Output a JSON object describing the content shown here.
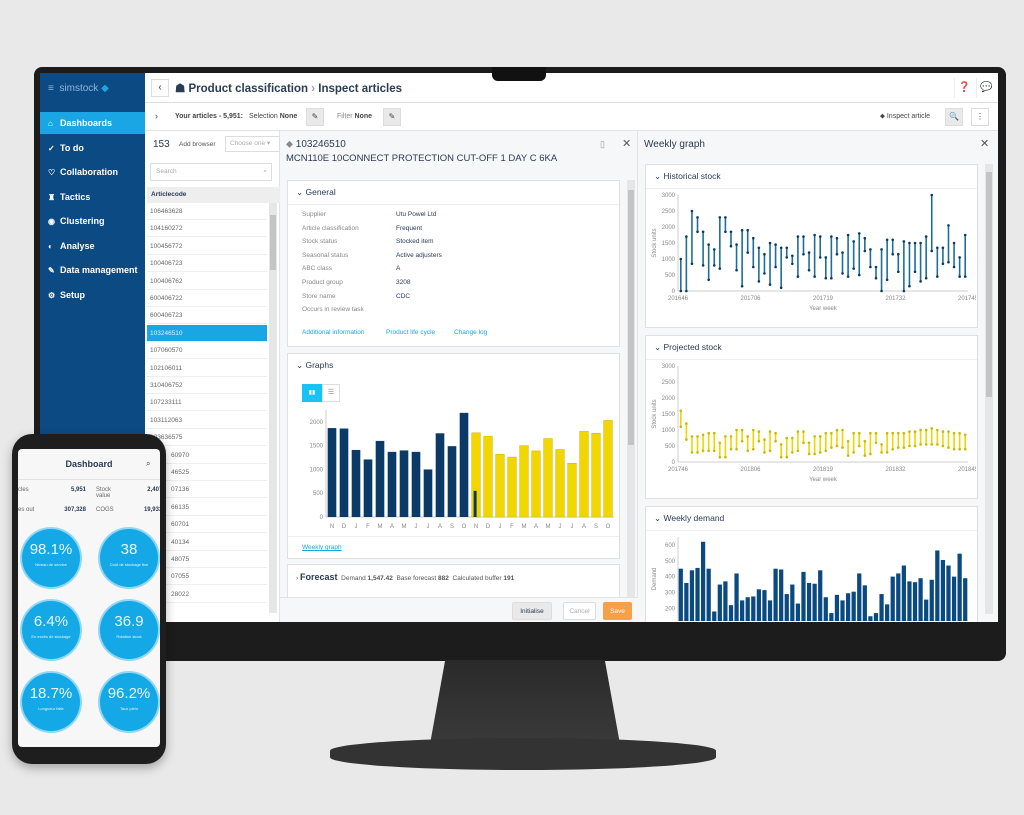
{
  "app": {
    "logo": "simstock"
  },
  "sidebar": {
    "items": [
      {
        "label": "Dashboards",
        "icon": "home-icon",
        "active": true
      },
      {
        "label": "To do",
        "icon": "check-icon"
      },
      {
        "label": "Collaboration",
        "icon": "handshake-icon"
      },
      {
        "label": "Tactics",
        "icon": "chess-icon"
      },
      {
        "label": "Clustering",
        "icon": "eye-icon"
      },
      {
        "label": "Analyse",
        "icon": "chart-icon"
      },
      {
        "label": "Data management",
        "icon": "wrench-icon"
      },
      {
        "label": "Setup",
        "icon": "gear-icon"
      }
    ]
  },
  "header": {
    "crumb1": "Product classification",
    "crumb2": "Inspect articles"
  },
  "toolbar": {
    "articles_label": "Your articles - 5,951:",
    "selection_label": "Selection",
    "selection_value": "None",
    "filter_label": "Filter",
    "filter_value": "None",
    "inspect_label": "Inspect article"
  },
  "list": {
    "count": "153",
    "add_browser": "Add browser",
    "choose": "Choose one",
    "search_placeholder": "Search",
    "column": "Articlecode",
    "rows": [
      "106463628",
      "104160272",
      "100456772",
      "100406723",
      "100406762",
      "600406722",
      "600406723",
      "103246510",
      "107060570",
      "102106011",
      "310406752",
      "107233111",
      "103112063",
      "103636575",
      "60970",
      "46525",
      "07136",
      "66135",
      "60701",
      "40134",
      "48075",
      "07055",
      "28022"
    ],
    "selected_index": 7
  },
  "detail": {
    "code": "103246510",
    "title": "MCN110E 10CONNECT PROTECTION CUT-OFF 1 DAY C 6KA",
    "general_title": "General",
    "fields": [
      {
        "k": "Supplier",
        "v": "Utu Powel Ltd"
      },
      {
        "k": "Article classification",
        "v": "Frequent"
      },
      {
        "k": "Stock status",
        "v": "Stocked item"
      },
      {
        "k": "Seasonal status",
        "v": "Active adjusters"
      },
      {
        "k": "ABC class",
        "v": "A"
      },
      {
        "k": "Product group",
        "v": "3208"
      },
      {
        "k": "Store name",
        "v": "CDC"
      },
      {
        "k": "Occurs in review task",
        "v": ""
      }
    ],
    "links": [
      "Additional information",
      "Product life cycle",
      "Change log"
    ],
    "graphs_title": "Graphs",
    "weekly_link": "Weekly graph",
    "forecast_title": "Forecast",
    "forecast_demand_label": "Demand",
    "forecast_demand": "1,547.42",
    "base_forecast_label": "Base forecast",
    "base_forecast": "882",
    "buffer_label": "Calculated buffer",
    "buffer": "191",
    "buttons": {
      "initialise": "Initialise",
      "cancel": "Cancel",
      "save": "Save"
    }
  },
  "weekly": {
    "title": "Weekly graph",
    "historical_title": "Historical stock",
    "projected_title": "Projected stock",
    "demand_title": "Weekly demand"
  },
  "colors": {
    "navy": "#0b3a66",
    "yellow": "#f2d600",
    "teal": "#1f6f95",
    "accent": "#1aa6e4",
    "save": "#f7a04a"
  },
  "chart_data": [
    {
      "type": "bar",
      "categories": [
        "N",
        "D",
        "J",
        "F",
        "M",
        "A",
        "M",
        "J",
        "J",
        "A",
        "S",
        "O",
        "N",
        "D",
        "J",
        "F",
        "M",
        "A",
        "M",
        "J",
        "J",
        "A",
        "S",
        "O"
      ],
      "series": [
        {
          "values": [
            1870,
            1860,
            1410,
            1210,
            1600,
            1370,
            1400,
            1370,
            1000,
            1760,
            1490,
            2190,
            550,
            null,
            null,
            null,
            null,
            null,
            null,
            null,
            null,
            null,
            null,
            null
          ],
          "color": "#0b3a66"
        },
        {
          "values": [
            null,
            null,
            null,
            null,
            null,
            null,
            null,
            null,
            null,
            null,
            null,
            null,
            1770,
            1700,
            1320,
            1260,
            1500,
            1390,
            1650,
            1420,
            1130,
            1800,
            1760,
            2030
          ],
          "color": "#f2d600"
        }
      ],
      "ylim": [
        0,
        2250
      ],
      "yticks": [
        0,
        500,
        1000,
        1500,
        2000
      ]
    },
    {
      "type": "range",
      "ylabel": "Stock units",
      "xlabel": "Year week",
      "xticks": [
        "201646",
        "201706",
        "201719",
        "201732",
        "201745"
      ],
      "ylim": [
        0,
        3000
      ],
      "yticks": [
        0,
        500,
        1000,
        1500,
        2000,
        2500,
        3000
      ],
      "color": "#1f6f95",
      "ranges": [
        [
          0,
          1000
        ],
        [
          0,
          1700
        ],
        [
          850,
          2500
        ],
        [
          1850,
          2300
        ],
        [
          800,
          1850
        ],
        [
          350,
          1450
        ],
        [
          800,
          1300
        ],
        [
          700,
          2300
        ],
        [
          1850,
          2300
        ],
        [
          1400,
          1850
        ],
        [
          650,
          1450
        ],
        [
          150,
          1900
        ],
        [
          1200,
          1900
        ],
        [
          750,
          1650
        ],
        [
          300,
          1350
        ],
        [
          550,
          1150
        ],
        [
          200,
          1500
        ],
        [
          750,
          1450
        ],
        [
          100,
          1350
        ],
        [
          1050,
          1350
        ],
        [
          850,
          1100
        ],
        [
          450,
          1700
        ],
        [
          1150,
          1700
        ],
        [
          650,
          1200
        ],
        [
          450,
          1750
        ],
        [
          1050,
          1700
        ],
        [
          400,
          1050
        ],
        [
          400,
          1700
        ],
        [
          1150,
          1650
        ],
        [
          550,
          1200
        ],
        [
          450,
          1750
        ],
        [
          700,
          1550
        ],
        [
          500,
          1800
        ],
        [
          1250,
          1650
        ],
        [
          750,
          1300
        ],
        [
          400,
          750
        ],
        [
          0,
          1300
        ],
        [
          350,
          1600
        ],
        [
          1150,
          1600
        ],
        [
          600,
          1150
        ],
        [
          0,
          1550
        ],
        [
          150,
          1500
        ],
        [
          600,
          1500
        ],
        [
          300,
          1500
        ],
        [
          400,
          1700
        ],
        [
          1250,
          3000
        ],
        [
          450,
          1350
        ],
        [
          850,
          1350
        ],
        [
          900,
          2050
        ],
        [
          750,
          1500
        ],
        [
          450,
          1050
        ],
        [
          450,
          1750
        ]
      ]
    },
    {
      "type": "range",
      "ylabel": "Stock units",
      "xlabel": "Year week",
      "xticks": [
        "201746",
        "201806",
        "201819",
        "201832",
        "201845"
      ],
      "ylim": [
        0,
        3000
      ],
      "yticks": [
        0,
        500,
        1000,
        1500,
        2000,
        2500,
        3000
      ],
      "color": "#e8d800",
      "ranges": [
        [
          1100,
          1600
        ],
        [
          700,
          1200
        ],
        [
          300,
          800
        ],
        [
          300,
          800
        ],
        [
          350,
          850
        ],
        [
          350,
          900
        ],
        [
          350,
          900
        ],
        [
          150,
          600
        ],
        [
          150,
          800
        ],
        [
          400,
          800
        ],
        [
          400,
          1000
        ],
        [
          650,
          1000
        ],
        [
          350,
          800
        ],
        [
          400,
          1000
        ],
        [
          650,
          950
        ],
        [
          300,
          700
        ],
        [
          350,
          950
        ],
        [
          650,
          900
        ],
        [
          150,
          550
        ],
        [
          150,
          750
        ],
        [
          300,
          750
        ],
        [
          350,
          950
        ],
        [
          600,
          950
        ],
        [
          250,
          600
        ],
        [
          250,
          800
        ],
        [
          300,
          800
        ],
        [
          350,
          900
        ],
        [
          450,
          900
        ],
        [
          500,
          1000
        ],
        [
          450,
          1000
        ],
        [
          200,
          650
        ],
        [
          300,
          900
        ],
        [
          500,
          900
        ],
        [
          200,
          650
        ],
        [
          250,
          900
        ],
        [
          600,
          900
        ],
        [
          300,
          550
        ],
        [
          300,
          900
        ],
        [
          400,
          900
        ],
        [
          450,
          900
        ],
        [
          450,
          900
        ],
        [
          500,
          950
        ],
        [
          500,
          950
        ],
        [
          550,
          1000
        ],
        [
          550,
          1000
        ],
        [
          550,
          1050
        ],
        [
          550,
          1000
        ],
        [
          500,
          950
        ],
        [
          450,
          950
        ],
        [
          400,
          900
        ],
        [
          400,
          900
        ],
        [
          400,
          850
        ]
      ]
    },
    {
      "type": "bar",
      "ylabel": "Demand",
      "ylim": [
        120,
        650
      ],
      "yticks": [
        200,
        300,
        400,
        500,
        600
      ],
      "color": "#0b4a80",
      "values": [
        450,
        360,
        440,
        455,
        620,
        450,
        180,
        350,
        370,
        220,
        420,
        250,
        270,
        275,
        320,
        315,
        250,
        450,
        445,
        290,
        350,
        230,
        430,
        360,
        355,
        440,
        270,
        170,
        285,
        250,
        295,
        305,
        420,
        345,
        150,
        170,
        290,
        225,
        400,
        420,
        470,
        370,
        365,
        390,
        255,
        380,
        565,
        505,
        470,
        400,
        545,
        390
      ]
    }
  ],
  "phone": {
    "title": "Dashboard",
    "stats": [
      {
        "k": "cles",
        "v": "5,951"
      },
      {
        "k": "Stock value",
        "v": "2,407,829"
      },
      {
        "k": "es out",
        "v": "307,328"
      },
      {
        "k": "COGS",
        "v": "19,933,713"
      }
    ],
    "kpis": [
      {
        "value": "98.1%",
        "label": "Niveau de service"
      },
      {
        "value": "38",
        "label": "Coût de stockage fixe"
      },
      {
        "value": "6.4%",
        "label": "En excès de stockage"
      },
      {
        "value": "36.9",
        "label": "Rotation stock"
      },
      {
        "value": "18.7%",
        "label": "Longueur faite"
      },
      {
        "value": "96.2%",
        "label": "Taux plein"
      }
    ]
  }
}
